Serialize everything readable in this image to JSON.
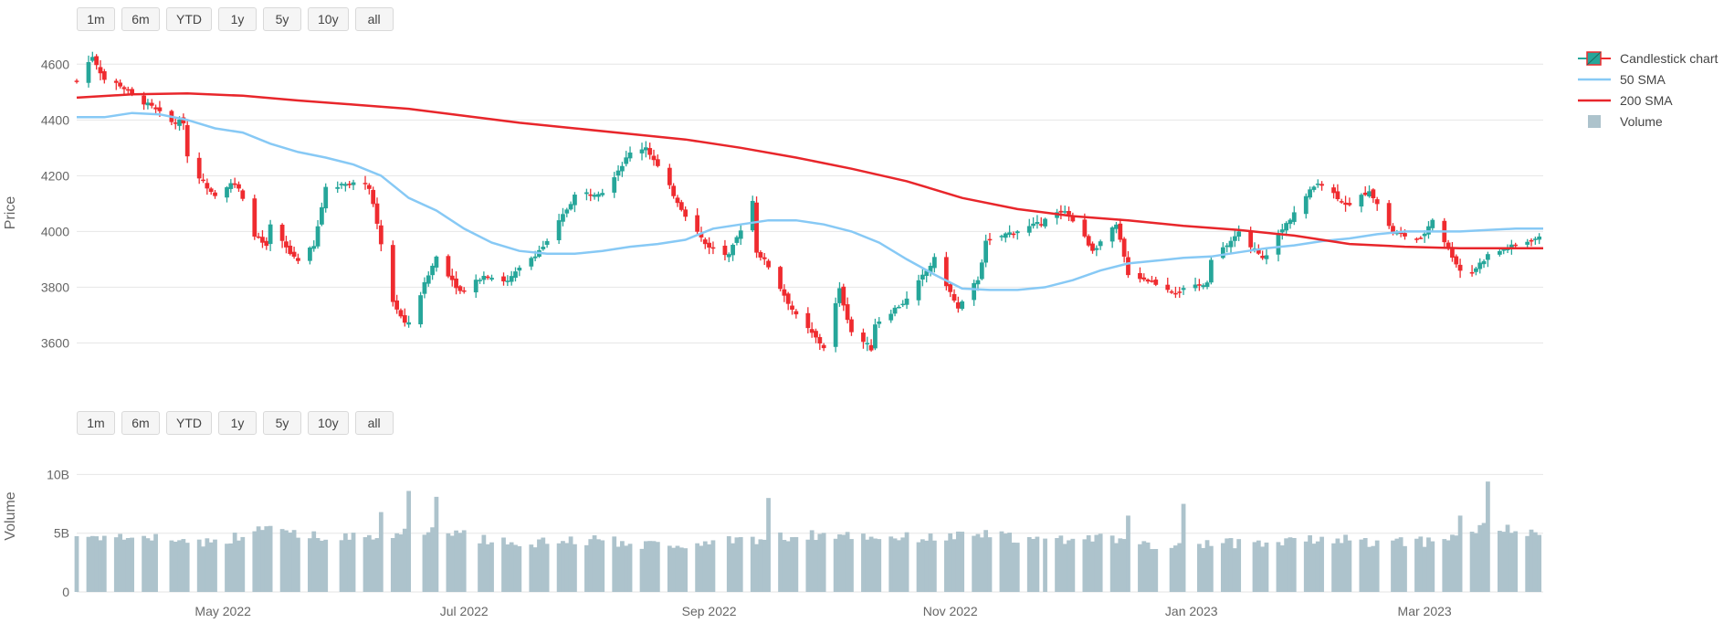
{
  "range_selector_top": {
    "buttons": [
      "1m",
      "6m",
      "YTD",
      "1y",
      "5y",
      "10y",
      "all"
    ]
  },
  "range_selector_bottom": {
    "buttons": [
      "1m",
      "6m",
      "YTD",
      "1y",
      "5y",
      "10y",
      "all"
    ]
  },
  "legend": {
    "items": [
      {
        "label": "Candlestick chart",
        "kind": "candle"
      },
      {
        "label": "50 SMA",
        "kind": "line",
        "color": "#87c9f5"
      },
      {
        "label": "200 SMA",
        "kind": "line",
        "color": "#e8262b"
      },
      {
        "label": "Volume",
        "kind": "bar",
        "color": "#adc3cc"
      }
    ]
  },
  "colors": {
    "up": "#26a69a",
    "down": "#ef2b2f",
    "sma50": "#87c9f5",
    "sma200": "#e8262b",
    "volume": "#adc3cc",
    "grid": "#e6e6e6"
  },
  "chart_data": {
    "type": "candlestick",
    "title": "",
    "x_start": "2022-03-25",
    "x_end": "2023-03-31",
    "x_ticks": [
      {
        "date": "2022-05-01",
        "label": "May 2022"
      },
      {
        "date": "2022-07-01",
        "label": "Jul 2022"
      },
      {
        "date": "2022-09-01",
        "label": "Sep 2022"
      },
      {
        "date": "2022-11-01",
        "label": "Nov 2022"
      },
      {
        "date": "2023-01-01",
        "label": "Jan 2023"
      },
      {
        "date": "2023-03-01",
        "label": "Mar 2023"
      }
    ],
    "price_axis": {
      "title": "Price",
      "ylim": [
        3480,
        4660
      ],
      "ticks": [
        3600,
        3800,
        4000,
        4200,
        4400,
        4600
      ],
      "tick_labels": [
        "3600",
        "3800",
        "4000",
        "4200",
        "4400",
        "4600"
      ],
      "grid": true
    },
    "volume_axis": {
      "title": "Volume",
      "ylim": [
        0,
        10.5
      ],
      "ticks": [
        0,
        5,
        10
      ],
      "tick_labels": [
        "0",
        "5B",
        "10B"
      ],
      "unit": "billions",
      "grid": true
    },
    "close_path": [
      [
        "2022-03-25",
        4540
      ],
      [
        "2022-03-29",
        4630
      ],
      [
        "2022-04-01",
        4545
      ],
      [
        "2022-04-05",
        4525
      ],
      [
        "2022-04-08",
        4490
      ],
      [
        "2022-04-13",
        4445
      ],
      [
        "2022-04-18",
        4390
      ],
      [
        "2022-04-21",
        4395
      ],
      [
        "2022-04-22",
        4270
      ],
      [
        "2022-04-26",
        4175
      ],
      [
        "2022-04-29",
        4135
      ],
      [
        "2022-05-03",
        4175
      ],
      [
        "2022-05-05",
        4150
      ],
      [
        "2022-05-09",
        3990
      ],
      [
        "2022-05-12",
        3940
      ],
      [
        "2022-05-13",
        4020
      ],
      [
        "2022-05-18",
        3920
      ],
      [
        "2022-05-20",
        3900
      ],
      [
        "2022-05-24",
        3945
      ],
      [
        "2022-05-27",
        4160
      ],
      [
        "2022-06-02",
        4175
      ],
      [
        "2022-06-07",
        4160
      ],
      [
        "2022-06-09",
        4020
      ],
      [
        "2022-06-13",
        3750
      ],
      [
        "2022-06-16",
        3665
      ],
      [
        "2022-06-17",
        3675
      ],
      [
        "2022-06-24",
        3910
      ],
      [
        "2022-06-30",
        3785
      ],
      [
        "2022-07-06",
        3845
      ],
      [
        "2022-07-12",
        3820
      ],
      [
        "2022-07-15",
        3865
      ],
      [
        "2022-07-22",
        3960
      ],
      [
        "2022-07-29",
        4130
      ],
      [
        "2022-08-05",
        4145
      ],
      [
        "2022-08-12",
        4280
      ],
      [
        "2022-08-16",
        4305
      ],
      [
        "2022-08-19",
        4230
      ],
      [
        "2022-08-26",
        4060
      ],
      [
        "2022-08-31",
        3955
      ],
      [
        "2022-09-06",
        3910
      ],
      [
        "2022-09-12",
        4110
      ],
      [
        "2022-09-13",
        3930
      ],
      [
        "2022-09-16",
        3875
      ],
      [
        "2022-09-23",
        3695
      ],
      [
        "2022-09-30",
        3585
      ],
      [
        "2022-10-04",
        3790
      ],
      [
        "2022-10-07",
        3640
      ],
      [
        "2022-10-12",
        3580
      ],
      [
        "2022-10-13",
        3670
      ],
      [
        "2022-10-21",
        3755
      ],
      [
        "2022-10-28",
        3900
      ],
      [
        "2022-11-03",
        3720
      ],
      [
        "2022-11-08",
        3830
      ],
      [
        "2022-11-10",
        3960
      ],
      [
        "2022-11-15",
        3990
      ],
      [
        "2022-11-23",
        4025
      ],
      [
        "2022-11-30",
        4080
      ],
      [
        "2022-12-07",
        3935
      ],
      [
        "2022-12-13",
        4020
      ],
      [
        "2022-12-16",
        3850
      ],
      [
        "2022-12-22",
        3820
      ],
      [
        "2022-12-28",
        3785
      ],
      [
        "2023-01-05",
        3810
      ],
      [
        "2023-01-06",
        3895
      ],
      [
        "2023-01-13",
        3995
      ],
      [
        "2023-01-19",
        3900
      ],
      [
        "2023-01-27",
        4070
      ],
      [
        "2023-02-02",
        4180
      ],
      [
        "2023-02-10",
        4090
      ],
      [
        "2023-02-15",
        4150
      ],
      [
        "2023-02-21",
        3995
      ],
      [
        "2023-02-28",
        3970
      ],
      [
        "2023-03-03",
        4045
      ],
      [
        "2023-03-10",
        3860
      ],
      [
        "2023-03-13",
        3855
      ],
      [
        "2023-03-17",
        3915
      ],
      [
        "2023-03-22",
        3940
      ],
      [
        "2023-03-29",
        3975
      ]
    ],
    "sma50": [
      [
        "2022-03-25",
        4410
      ],
      [
        "2022-04-01",
        4410
      ],
      [
        "2022-04-08",
        4425
      ],
      [
        "2022-04-15",
        4420
      ],
      [
        "2022-04-22",
        4400
      ],
      [
        "2022-04-29",
        4370
      ],
      [
        "2022-05-06",
        4355
      ],
      [
        "2022-05-13",
        4315
      ],
      [
        "2022-05-20",
        4285
      ],
      [
        "2022-05-27",
        4265
      ],
      [
        "2022-06-03",
        4240
      ],
      [
        "2022-06-10",
        4200
      ],
      [
        "2022-06-17",
        4120
      ],
      [
        "2022-06-24",
        4075
      ],
      [
        "2022-07-01",
        4010
      ],
      [
        "2022-07-08",
        3960
      ],
      [
        "2022-07-15",
        3930
      ],
      [
        "2022-07-22",
        3920
      ],
      [
        "2022-07-29",
        3920
      ],
      [
        "2022-08-05",
        3930
      ],
      [
        "2022-08-12",
        3945
      ],
      [
        "2022-08-19",
        3955
      ],
      [
        "2022-08-26",
        3970
      ],
      [
        "2022-09-02",
        4010
      ],
      [
        "2022-09-09",
        4025
      ],
      [
        "2022-09-16",
        4040
      ],
      [
        "2022-09-23",
        4040
      ],
      [
        "2022-09-30",
        4025
      ],
      [
        "2022-10-07",
        4000
      ],
      [
        "2022-10-14",
        3960
      ],
      [
        "2022-10-21",
        3900
      ],
      [
        "2022-10-28",
        3845
      ],
      [
        "2022-11-04",
        3795
      ],
      [
        "2022-11-11",
        3790
      ],
      [
        "2022-11-18",
        3790
      ],
      [
        "2022-11-25",
        3800
      ],
      [
        "2022-12-02",
        3825
      ],
      [
        "2022-12-09",
        3860
      ],
      [
        "2022-12-16",
        3885
      ],
      [
        "2022-12-23",
        3895
      ],
      [
        "2022-12-30",
        3905
      ],
      [
        "2023-01-06",
        3910
      ],
      [
        "2023-01-13",
        3925
      ],
      [
        "2023-01-20",
        3940
      ],
      [
        "2023-01-27",
        3950
      ],
      [
        "2023-02-03",
        3965
      ],
      [
        "2023-02-10",
        3975
      ],
      [
        "2023-02-17",
        3990
      ],
      [
        "2023-02-24",
        4000
      ],
      [
        "2023-03-03",
        4000
      ],
      [
        "2023-03-10",
        4000
      ],
      [
        "2023-03-17",
        4005
      ],
      [
        "2023-03-24",
        4010
      ],
      [
        "2023-03-31",
        4010
      ]
    ],
    "sma200": [
      [
        "2022-03-25",
        4480
      ],
      [
        "2022-04-08",
        4492
      ],
      [
        "2022-04-22",
        4495
      ],
      [
        "2022-05-06",
        4487
      ],
      [
        "2022-05-20",
        4470
      ],
      [
        "2022-06-03",
        4455
      ],
      [
        "2022-06-17",
        4440
      ],
      [
        "2022-07-01",
        4415
      ],
      [
        "2022-07-15",
        4390
      ],
      [
        "2022-07-29",
        4370
      ],
      [
        "2022-08-12",
        4350
      ],
      [
        "2022-08-26",
        4330
      ],
      [
        "2022-09-09",
        4300
      ],
      [
        "2022-09-23",
        4265
      ],
      [
        "2022-10-07",
        4225
      ],
      [
        "2022-10-21",
        4180
      ],
      [
        "2022-11-04",
        4120
      ],
      [
        "2022-11-18",
        4080
      ],
      [
        "2022-12-02",
        4055
      ],
      [
        "2022-12-16",
        4040
      ],
      [
        "2022-12-30",
        4020
      ],
      [
        "2023-01-13",
        4005
      ],
      [
        "2023-01-27",
        3985
      ],
      [
        "2023-02-10",
        3955
      ],
      [
        "2023-02-24",
        3945
      ],
      [
        "2023-03-10",
        3940
      ],
      [
        "2023-03-24",
        3940
      ],
      [
        "2023-03-31",
        3940
      ]
    ],
    "volume_profile": [
      [
        "2022-03-25",
        4.8
      ],
      [
        "2022-04-15",
        4.6
      ],
      [
        "2022-04-29",
        4.2
      ],
      [
        "2022-05-13",
        5.5
      ],
      [
        "2022-05-27",
        4.6
      ],
      [
        "2022-06-10",
        4.8
      ],
      [
        "2022-06-24",
        5.4
      ],
      [
        "2022-07-08",
        4.3
      ],
      [
        "2022-07-22",
        4.2
      ],
      [
        "2022-08-05",
        4.4
      ],
      [
        "2022-08-19",
        4.0
      ],
      [
        "2022-09-02",
        4.2
      ],
      [
        "2022-09-16",
        4.6
      ],
      [
        "2022-09-30",
        4.9
      ],
      [
        "2022-10-14",
        4.7
      ],
      [
        "2022-10-28",
        4.6
      ],
      [
        "2022-11-11",
        4.9
      ],
      [
        "2022-11-25",
        4.3
      ],
      [
        "2022-12-09",
        4.6
      ],
      [
        "2022-12-23",
        3.8
      ],
      [
        "2023-01-06",
        4.2
      ],
      [
        "2023-01-20",
        4.1
      ],
      [
        "2023-02-03",
        4.6
      ],
      [
        "2023-02-17",
        4.2
      ],
      [
        "2023-03-03",
        4.3
      ],
      [
        "2023-03-17",
        5.6
      ],
      [
        "2023-03-31",
        4.7
      ]
    ],
    "volume_spikes": [
      [
        "2022-06-10",
        6.8
      ],
      [
        "2022-06-17",
        8.6
      ],
      [
        "2022-06-24",
        8.1
      ],
      [
        "2022-09-16",
        8.0
      ],
      [
        "2022-12-16",
        6.5
      ],
      [
        "2022-12-30",
        7.5
      ],
      [
        "2023-03-10",
        6.5
      ],
      [
        "2023-03-17",
        9.4
      ]
    ],
    "volume_gaps": [
      "2022-04-15",
      "2022-05-30",
      "2022-06-20",
      "2022-07-04",
      "2022-09-05",
      "2022-11-24",
      "2022-12-26",
      "2023-01-02",
      "2023-01-16",
      "2023-02-20"
    ]
  }
}
